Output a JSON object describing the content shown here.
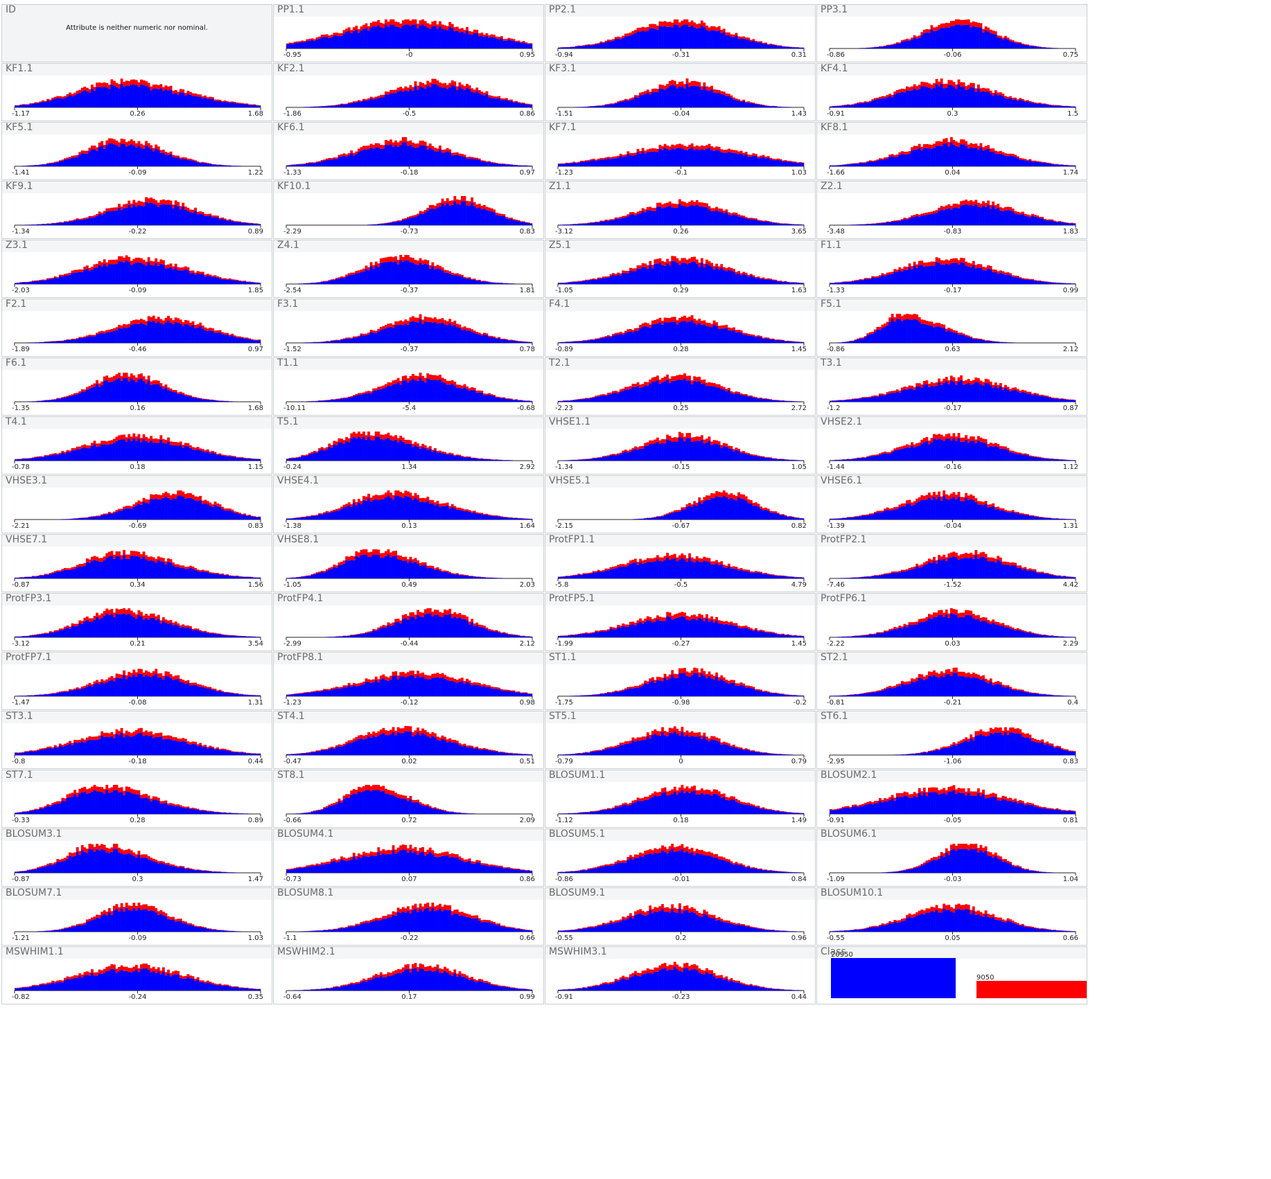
{
  "colors": {
    "class_a": "#0000ff",
    "class_b": "#ff0000",
    "axis": "#222222",
    "border": "#c9ced2"
  },
  "empty_message": "Attribute is neither numeric nor nominal.",
  "panels": [
    {
      "name": "ID",
      "kind": "empty"
    },
    {
      "name": "PP1.1",
      "ticks": [
        "-0.95",
        "-0",
        "0.95"
      ],
      "mode": 0,
      "width": 0.55,
      "skew": 0,
      "height": 0.78
    },
    {
      "name": "PP2.1",
      "ticks": [
        "-0.94",
        "-0.31",
        "0.31"
      ],
      "mode": 0,
      "width": 0.38,
      "skew": 0,
      "height": 0.78
    },
    {
      "name": "PP3.1",
      "ticks": [
        "-0.86",
        "-0.06",
        "0.75"
      ],
      "mode": 0.05,
      "width": 0.28,
      "skew": 0,
      "height": 0.78
    },
    {
      "name": "KF1.1",
      "ticks": [
        "-1.17",
        "0.26",
        "1.68"
      ],
      "mode": -0.12,
      "width": 0.42,
      "skew": 0.2,
      "height": 0.72
    },
    {
      "name": "KF2.1",
      "ticks": [
        "-1.86",
        "-0.5",
        "0.86"
      ],
      "mode": 0.22,
      "width": 0.38,
      "skew": 0,
      "height": 0.72
    },
    {
      "name": "KF3.1",
      "ticks": [
        "-1.51",
        "-0.04",
        "1.43"
      ],
      "mode": 0.02,
      "width": 0.3,
      "skew": 0,
      "height": 0.72
    },
    {
      "name": "KF4.1",
      "ticks": [
        "-0.91",
        "0.3",
        "1.5"
      ],
      "mode": -0.08,
      "width": 0.38,
      "skew": 0.1,
      "height": 0.72
    },
    {
      "name": "KF5.1",
      "ticks": [
        "-1.41",
        "-0.09",
        "1.22"
      ],
      "mode": -0.12,
      "width": 0.3,
      "skew": 0.1,
      "height": 0.75
    },
    {
      "name": "KF6.1",
      "ticks": [
        "-1.33",
        "-0.18",
        "0.97"
      ],
      "mode": -0.05,
      "width": 0.38,
      "skew": 0,
      "height": 0.72
    },
    {
      "name": "KF7.1",
      "ticks": [
        "-1.23",
        "-0.1",
        "1.03"
      ],
      "mode": 0.05,
      "width": 0.5,
      "skew": 0,
      "height": 0.6
    },
    {
      "name": "KF8.1",
      "ticks": [
        "-1.66",
        "0.04",
        "1.74"
      ],
      "mode": 0,
      "width": 0.38,
      "skew": 0,
      "height": 0.72
    },
    {
      "name": "KF9.1",
      "ticks": [
        "-1.34",
        "-0.22",
        "0.89"
      ],
      "mode": 0.12,
      "width": 0.36,
      "skew": 0,
      "height": 0.7
    },
    {
      "name": "KF10.1",
      "ticks": [
        "-2.29",
        "-0.73",
        "0.83"
      ],
      "mode": 0.4,
      "width": 0.26,
      "skew": 0,
      "height": 0.75
    },
    {
      "name": "Z1.1",
      "ticks": [
        "-3.12",
        "0.26",
        "3.65"
      ],
      "mode": 0.02,
      "width": 0.36,
      "skew": 0,
      "height": 0.65
    },
    {
      "name": "Z2.1",
      "ticks": [
        "-3.48",
        "-0.83",
        "1.83"
      ],
      "mode": 0.18,
      "width": 0.36,
      "skew": 0,
      "height": 0.65
    },
    {
      "name": "Z3.1",
      "ticks": [
        "-2.03",
        "-0.09",
        "1.85"
      ],
      "mode": -0.05,
      "width": 0.4,
      "skew": 0.1,
      "height": 0.72
    },
    {
      "name": "Z4.1",
      "ticks": [
        "-2.54",
        "-0.37",
        "1.81"
      ],
      "mode": -0.08,
      "width": 0.3,
      "skew": 0.1,
      "height": 0.75
    },
    {
      "name": "Z5.1",
      "ticks": [
        "-1.05",
        "0.29",
        "1.63"
      ],
      "mode": 0,
      "width": 0.4,
      "skew": 0,
      "height": 0.7
    },
    {
      "name": "F1.1",
      "ticks": [
        "-1.33",
        "-0.17",
        "0.99"
      ],
      "mode": -0.05,
      "width": 0.38,
      "skew": 0,
      "height": 0.7
    },
    {
      "name": "F2.1",
      "ticks": [
        "-1.89",
        "-0.46",
        "0.97"
      ],
      "mode": 0.2,
      "width": 0.38,
      "skew": 0,
      "height": 0.7
    },
    {
      "name": "F3.1",
      "ticks": [
        "-1.52",
        "-0.37",
        "0.78"
      ],
      "mode": 0.12,
      "width": 0.34,
      "skew": 0,
      "height": 0.72
    },
    {
      "name": "F4.1",
      "ticks": [
        "-0.89",
        "0.28",
        "1.45"
      ],
      "mode": 0.02,
      "width": 0.38,
      "skew": 0,
      "height": 0.7
    },
    {
      "name": "F5.1",
      "ticks": [
        "-0.86",
        "0.63",
        "2.12"
      ],
      "mode": -0.4,
      "width": 0.22,
      "skew": 0.4,
      "height": 0.82
    },
    {
      "name": "F6.1",
      "ticks": [
        "-1.35",
        "0.16",
        "1.68"
      ],
      "mode": -0.1,
      "width": 0.28,
      "skew": 0.1,
      "height": 0.78
    },
    {
      "name": "T1.1",
      "ticks": [
        "-10.11",
        "-5.4",
        "-0.68"
      ],
      "mode": 0.12,
      "width": 0.34,
      "skew": 0,
      "height": 0.72
    },
    {
      "name": "T2.1",
      "ticks": [
        "-2.23",
        "0.25",
        "2.72"
      ],
      "mode": -0.05,
      "width": 0.36,
      "skew": 0,
      "height": 0.72
    },
    {
      "name": "T3.1",
      "ticks": [
        "-1.2",
        "-0.17",
        "0.87"
      ],
      "mode": 0.05,
      "width": 0.42,
      "skew": 0,
      "height": 0.65
    },
    {
      "name": "T4.1",
      "ticks": [
        "-0.78",
        "0.18",
        "1.15"
      ],
      "mode": 0,
      "width": 0.42,
      "skew": 0,
      "height": 0.7
    },
    {
      "name": "T5.1",
      "ticks": [
        "-0.24",
        "1.34",
        "2.92"
      ],
      "mode": -0.35,
      "width": 0.32,
      "skew": 0.3,
      "height": 0.78
    },
    {
      "name": "VHSE1.1",
      "ticks": [
        "-1.34",
        "-0.15",
        "1.05"
      ],
      "mode": 0.02,
      "width": 0.34,
      "skew": 0,
      "height": 0.72
    },
    {
      "name": "VHSE2.1",
      "ticks": [
        "-1.44",
        "-0.16",
        "1.12"
      ],
      "mode": 0,
      "width": 0.36,
      "skew": 0,
      "height": 0.72
    },
    {
      "name": "VHSE3.1",
      "ticks": [
        "-2.21",
        "-0.69",
        "0.83"
      ],
      "mode": 0.3,
      "width": 0.32,
      "skew": 0,
      "height": 0.75
    },
    {
      "name": "VHSE4.1",
      "ticks": [
        "-1.38",
        "0.13",
        "1.64"
      ],
      "mode": -0.15,
      "width": 0.36,
      "skew": 0.2,
      "height": 0.75
    },
    {
      "name": "VHSE5.1",
      "ticks": [
        "-2.15",
        "-0.67",
        "0.82"
      ],
      "mode": 0.35,
      "width": 0.26,
      "skew": 0,
      "height": 0.75
    },
    {
      "name": "VHSE6.1",
      "ticks": [
        "-1.39",
        "-0.04",
        "1.31"
      ],
      "mode": -0.05,
      "width": 0.36,
      "skew": 0,
      "height": 0.72
    },
    {
      "name": "VHSE7.1",
      "ticks": [
        "-0.87",
        "0.34",
        "1.56"
      ],
      "mode": -0.12,
      "width": 0.36,
      "skew": 0.2,
      "height": 0.72
    },
    {
      "name": "VHSE8.1",
      "ticks": [
        "-1.05",
        "0.49",
        "2.03"
      ],
      "mode": -0.3,
      "width": 0.28,
      "skew": 0.3,
      "height": 0.8
    },
    {
      "name": "ProtFP1.1",
      "ticks": [
        "-5.8",
        "-0.5",
        "4.79"
      ],
      "mode": -0.05,
      "width": 0.42,
      "skew": 0,
      "height": 0.65
    },
    {
      "name": "ProtFP2.1",
      "ticks": [
        "-7.46",
        "-1.52",
        "4.42"
      ],
      "mode": 0.12,
      "width": 0.36,
      "skew": 0,
      "height": 0.72
    },
    {
      "name": "ProtFP3.1",
      "ticks": [
        "-3.12",
        "0.21",
        "3.54"
      ],
      "mode": -0.15,
      "width": 0.34,
      "skew": 0.2,
      "height": 0.75
    },
    {
      "name": "ProtFP4.1",
      "ticks": [
        "-2.99",
        "-0.44",
        "2.12"
      ],
      "mode": 0.2,
      "width": 0.3,
      "skew": 0,
      "height": 0.78
    },
    {
      "name": "ProtFP5.1",
      "ticks": [
        "-1.99",
        "-0.27",
        "1.45"
      ],
      "mode": 0,
      "width": 0.42,
      "skew": 0,
      "height": 0.65
    },
    {
      "name": "ProtFP6.1",
      "ticks": [
        "-2.22",
        "0.03",
        "2.29"
      ],
      "mode": 0.02,
      "width": 0.34,
      "skew": 0,
      "height": 0.72
    },
    {
      "name": "ProtFP7.1",
      "ticks": [
        "-1.47",
        "-0.08",
        "1.31"
      ],
      "mode": 0.05,
      "width": 0.36,
      "skew": 0,
      "height": 0.7
    },
    {
      "name": "ProtFP8.1",
      "ticks": [
        "-1.23",
        "-0.12",
        "0.98"
      ],
      "mode": 0.05,
      "width": 0.46,
      "skew": 0,
      "height": 0.65
    },
    {
      "name": "ST1.1",
      "ticks": [
        "-1.75",
        "-0.98",
        "-0.2"
      ],
      "mode": 0.08,
      "width": 0.34,
      "skew": 0,
      "height": 0.72
    },
    {
      "name": "ST2.1",
      "ticks": [
        "-0.81",
        "-0.21",
        "0.4"
      ],
      "mode": -0.02,
      "width": 0.34,
      "skew": 0,
      "height": 0.72
    },
    {
      "name": "ST3.1",
      "ticks": [
        "-0.8",
        "-0.18",
        "0.44"
      ],
      "mode": -0.05,
      "width": 0.44,
      "skew": 0,
      "height": 0.68
    },
    {
      "name": "ST4.1",
      "ticks": [
        "-0.47",
        "0.02",
        "0.51"
      ],
      "mode": -0.1,
      "width": 0.36,
      "skew": 0.15,
      "height": 0.75
    },
    {
      "name": "ST5.1",
      "ticks": [
        "-0.79",
        "0",
        "0.79"
      ],
      "mode": -0.05,
      "width": 0.34,
      "skew": 0,
      "height": 0.72
    },
    {
      "name": "ST6.1",
      "ticks": [
        "-2.95",
        "-1.06",
        "0.83"
      ],
      "mode": 0.4,
      "width": 0.3,
      "skew": 0,
      "height": 0.75
    },
    {
      "name": "ST7.1",
      "ticks": [
        "-0.33",
        "0.28",
        "0.89"
      ],
      "mode": -0.3,
      "width": 0.32,
      "skew": 0.3,
      "height": 0.78
    },
    {
      "name": "ST8.1",
      "ticks": [
        "-0.66",
        "0.72",
        "2.09"
      ],
      "mode": -0.3,
      "width": 0.24,
      "skew": 0.2,
      "height": 0.8
    },
    {
      "name": "BLOSUM1.1",
      "ticks": [
        "-1.12",
        "0.18",
        "1.49"
      ],
      "mode": 0.05,
      "width": 0.36,
      "skew": 0,
      "height": 0.75
    },
    {
      "name": "BLOSUM2.1",
      "ticks": [
        "-0.91",
        "-0.05",
        "0.81"
      ],
      "mode": -0.05,
      "width": 0.5,
      "skew": 0,
      "height": 0.72
    },
    {
      "name": "BLOSUM3.1",
      "ticks": [
        "-0.87",
        "0.3",
        "1.47"
      ],
      "mode": -0.32,
      "width": 0.3,
      "skew": 0.3,
      "height": 0.78
    },
    {
      "name": "BLOSUM4.1",
      "ticks": [
        "-0.73",
        "0.07",
        "0.86"
      ],
      "mode": -0.05,
      "width": 0.48,
      "skew": 0,
      "height": 0.7
    },
    {
      "name": "BLOSUM5.1",
      "ticks": [
        "-0.86",
        "-0.01",
        "0.84"
      ],
      "mode": -0.05,
      "width": 0.36,
      "skew": 0,
      "height": 0.72
    },
    {
      "name": "BLOSUM6.1",
      "ticks": [
        "-1.09",
        "-0.03",
        "1.04"
      ],
      "mode": 0.12,
      "width": 0.24,
      "skew": 0,
      "height": 0.8
    },
    {
      "name": "BLOSUM7.1",
      "ticks": [
        "-1.21",
        "-0.09",
        "1.03"
      ],
      "mode": -0.05,
      "width": 0.28,
      "skew": 0.1,
      "height": 0.75
    },
    {
      "name": "BLOSUM8.1",
      "ticks": [
        "-1.1",
        "-0.22",
        "0.66"
      ],
      "mode": 0.15,
      "width": 0.36,
      "skew": 0,
      "height": 0.75
    },
    {
      "name": "BLOSUM9.1",
      "ticks": [
        "-0.55",
        "0.2",
        "0.96"
      ],
      "mode": -0.08,
      "width": 0.36,
      "skew": 0,
      "height": 0.72
    },
    {
      "name": "BLOSUM10.1",
      "ticks": [
        "-0.55",
        "0.05",
        "0.66"
      ],
      "mode": 0,
      "width": 0.36,
      "skew": 0,
      "height": 0.72
    },
    {
      "name": "MSWHIM1.1",
      "ticks": [
        "-0.82",
        "-0.24",
        "0.35"
      ],
      "mode": -0.05,
      "width": 0.44,
      "skew": 0,
      "height": 0.7
    },
    {
      "name": "MSWHIM2.1",
      "ticks": [
        "-0.64",
        "0.17",
        "0.99"
      ],
      "mode": 0.1,
      "width": 0.36,
      "skew": 0,
      "height": 0.7
    },
    {
      "name": "MSWHIM3.1",
      "ticks": [
        "-0.91",
        "-0.23",
        "0.44"
      ],
      "mode": -0.05,
      "width": 0.36,
      "skew": 0,
      "height": 0.72
    },
    {
      "name": "Class",
      "kind": "class",
      "counts": [
        {
          "label": "20950",
          "value": 20950
        },
        {
          "label": "9050",
          "value": 9050
        }
      ]
    }
  ]
}
